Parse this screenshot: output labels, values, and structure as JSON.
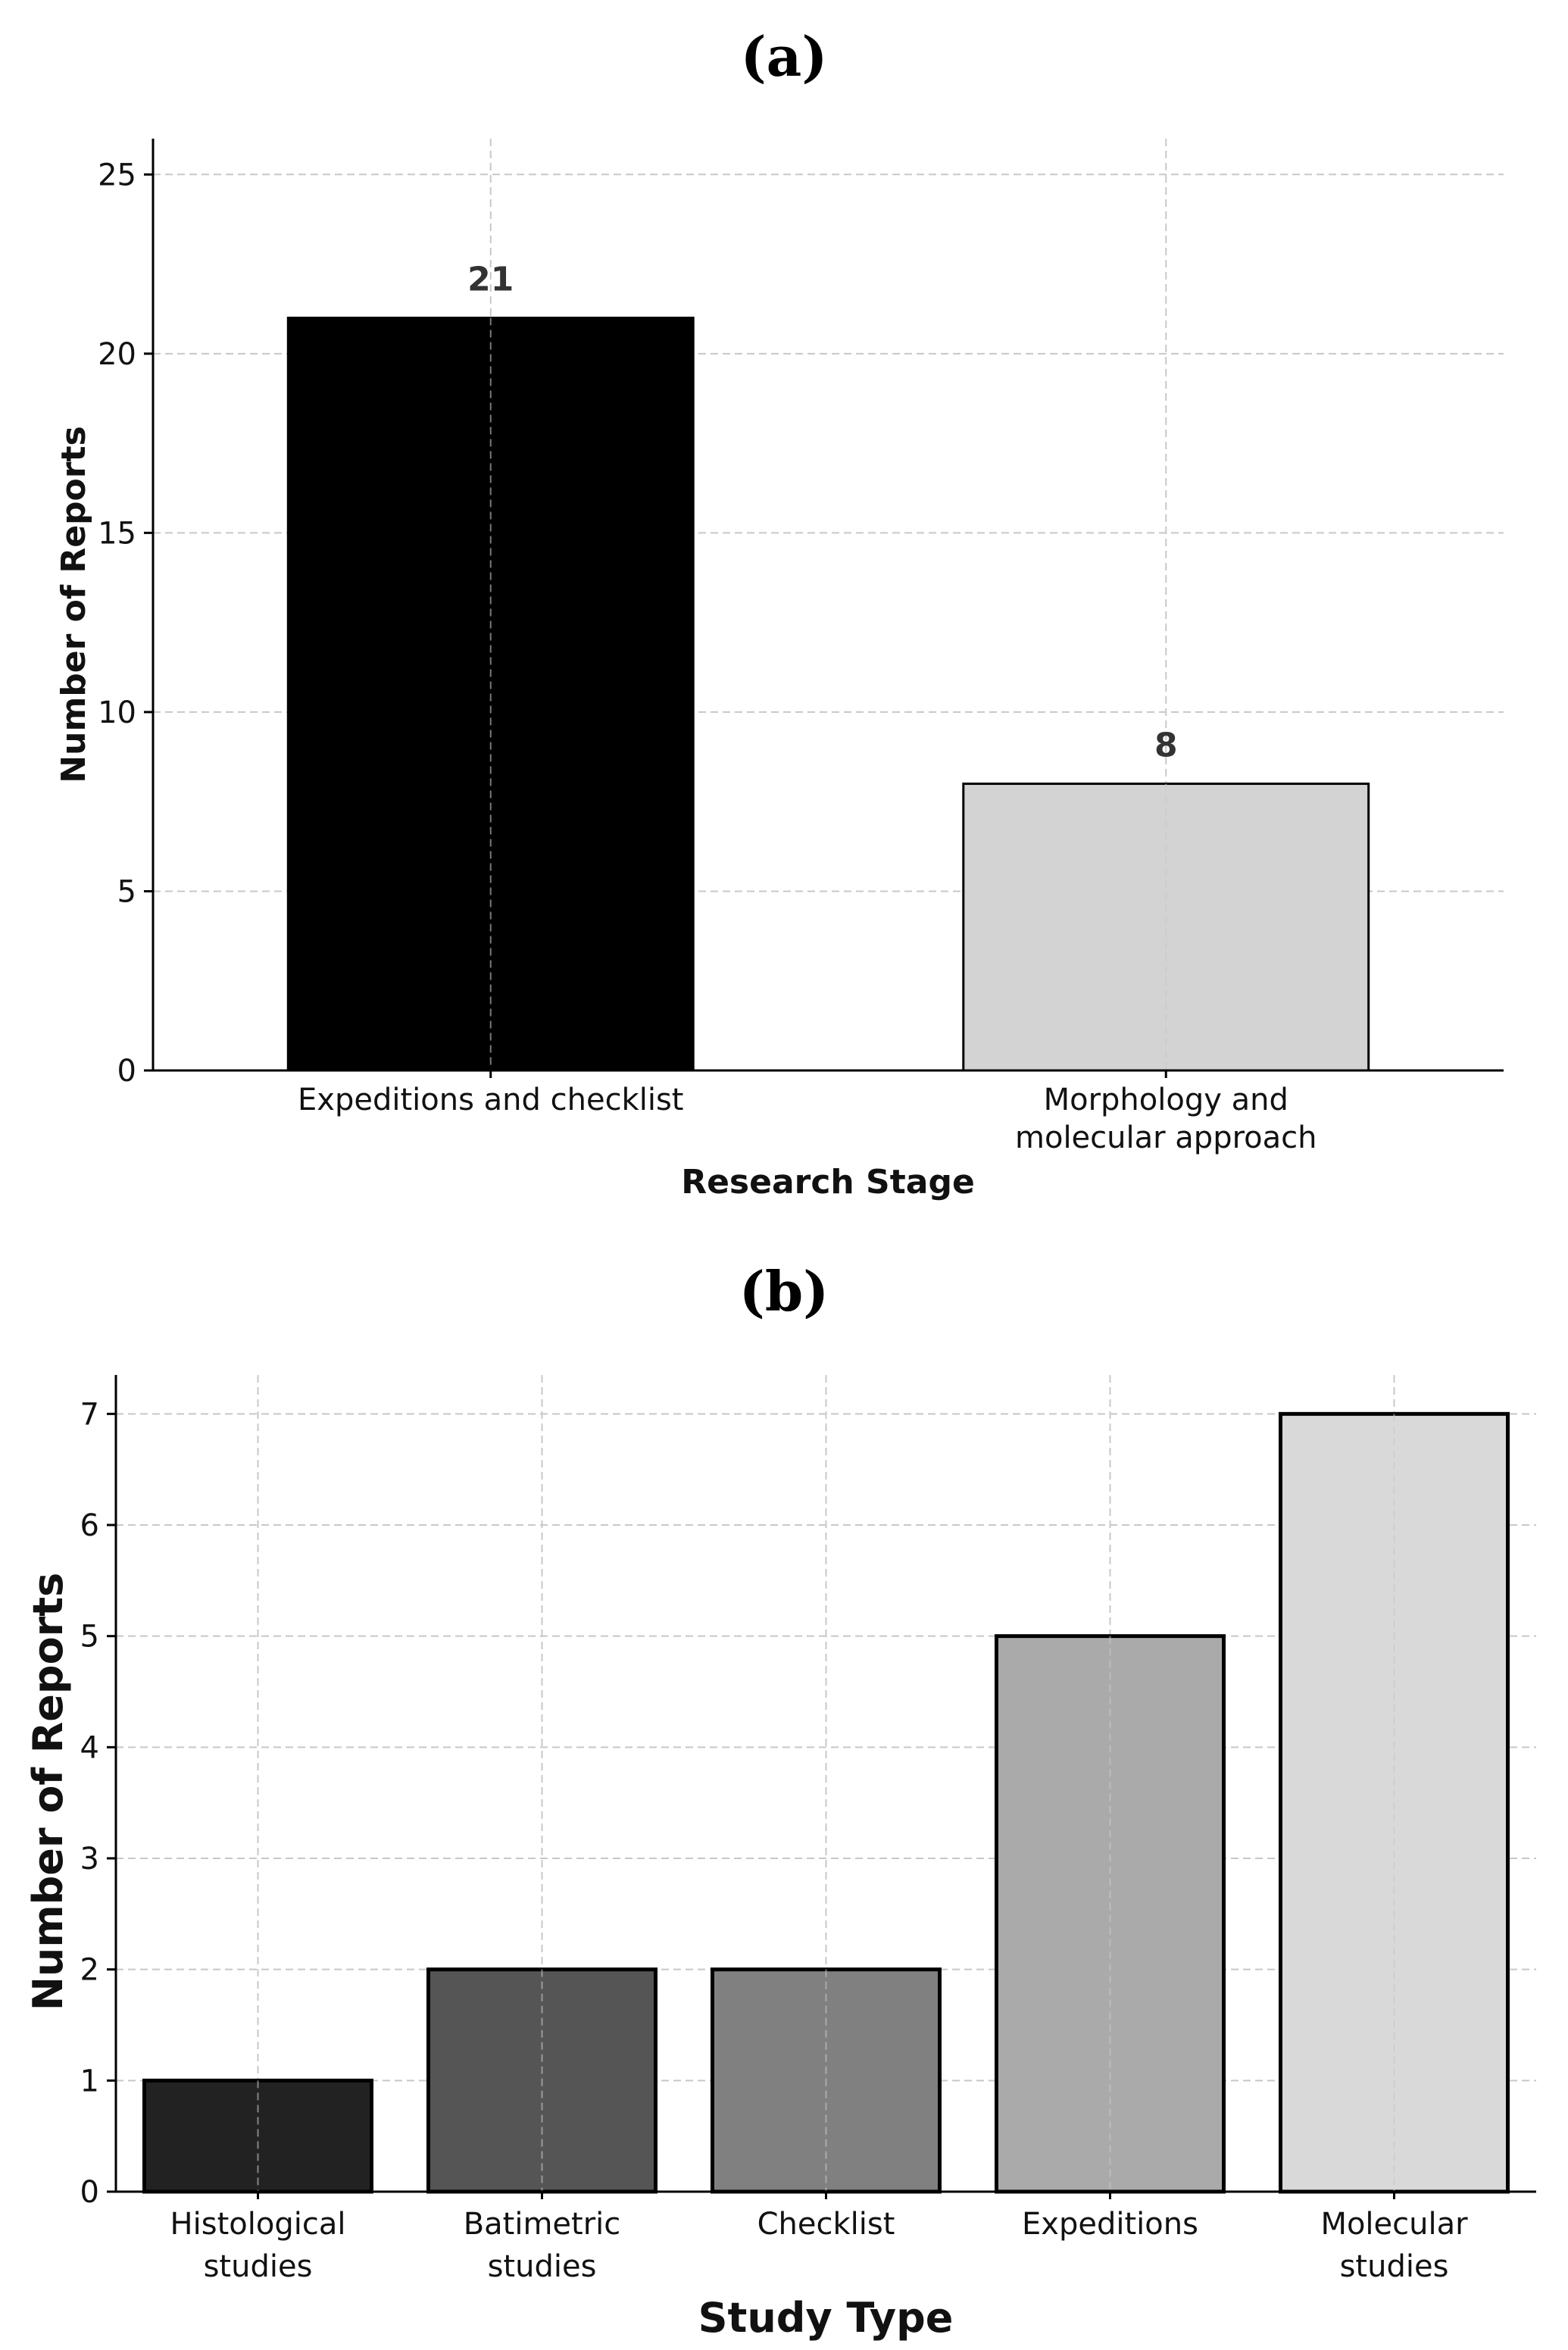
{
  "chart_data": [
    {
      "panel_label": "(a)",
      "type": "bar",
      "categories": [
        [
          "Expeditions and checklist"
        ],
        [
          "Morphology and",
          "molecular approach"
        ]
      ],
      "values": [
        21,
        8
      ],
      "data_labels": [
        "21",
        "8"
      ],
      "colors": [
        "#000000",
        "#d3d3d3"
      ],
      "xlabel": "Research Stage",
      "ylabel": "Number of Reports",
      "ylim": [
        0,
        26
      ],
      "yticks": [
        0,
        5,
        10,
        15,
        20,
        25
      ],
      "grid": true
    },
    {
      "panel_label": "(b)",
      "type": "bar",
      "categories": [
        [
          "Histological",
          "studies"
        ],
        [
          "Batimetric",
          "studies"
        ],
        [
          "Checklist"
        ],
        [
          "Expeditions"
        ],
        [
          "Molecular",
          "studies"
        ]
      ],
      "values": [
        1,
        2,
        2,
        5,
        7
      ],
      "colors": [
        "#222222",
        "#555555",
        "#808080",
        "#aaaaaa",
        "#d9d9d9"
      ],
      "xlabel": "Study Type",
      "ylabel": "Number of Reports",
      "ylim": [
        0,
        7.35
      ],
      "yticks": [
        0,
        1,
        2,
        3,
        4,
        5,
        6,
        7
      ],
      "grid": true
    }
  ]
}
